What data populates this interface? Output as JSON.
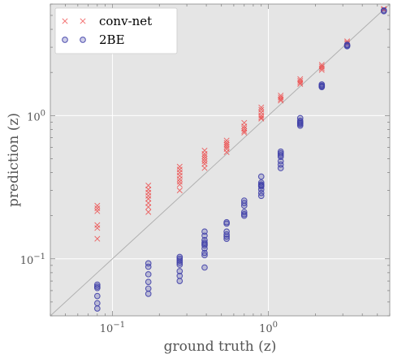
{
  "chart_data": {
    "type": "scatter",
    "title": "",
    "xlabel": "ground truth (z)",
    "ylabel": "prediction (z)",
    "xscale": "log",
    "yscale": "log",
    "xlim": [
      0.04,
      6.0
    ],
    "ylim": [
      0.04,
      6.0
    ],
    "grid": true,
    "legend_position": "top-left",
    "reference_line": "y = x",
    "x_tick_labels": [
      {
        "base": "10",
        "exp": "−1",
        "value": 0.1
      },
      {
        "base": "10",
        "exp": "0",
        "value": 1
      }
    ],
    "y_tick_labels": [
      {
        "base": "10",
        "exp": "−1",
        "value": 0.1
      },
      {
        "base": "10",
        "exp": "0",
        "value": 1
      }
    ],
    "colors": {
      "plot_background": "#e5e5e5",
      "grid": "#ffffff",
      "reference_line": "#b0b0b0",
      "conv_net": "#ee3333",
      "two_be": "#4040a8"
    },
    "series": [
      {
        "name": "conv-net",
        "marker": "x",
        "color": "#ee3333",
        "points": [
          [
            0.08,
            0.235
          ],
          [
            0.08,
            0.225
          ],
          [
            0.08,
            0.215
          ],
          [
            0.08,
            0.172
          ],
          [
            0.08,
            0.164
          ],
          [
            0.08,
            0.138
          ],
          [
            0.17,
            0.325
          ],
          [
            0.17,
            0.305
          ],
          [
            0.17,
            0.29
          ],
          [
            0.17,
            0.275
          ],
          [
            0.17,
            0.262
          ],
          [
            0.17,
            0.245
          ],
          [
            0.17,
            0.23
          ],
          [
            0.17,
            0.212
          ],
          [
            0.27,
            0.44
          ],
          [
            0.27,
            0.42
          ],
          [
            0.27,
            0.4
          ],
          [
            0.27,
            0.38
          ],
          [
            0.27,
            0.36
          ],
          [
            0.27,
            0.345
          ],
          [
            0.27,
            0.33
          ],
          [
            0.27,
            0.3
          ],
          [
            0.39,
            0.57
          ],
          [
            0.39,
            0.54
          ],
          [
            0.39,
            0.52
          ],
          [
            0.39,
            0.5
          ],
          [
            0.39,
            0.48
          ],
          [
            0.39,
            0.46
          ],
          [
            0.39,
            0.43
          ],
          [
            0.54,
            0.67
          ],
          [
            0.54,
            0.645
          ],
          [
            0.54,
            0.625
          ],
          [
            0.54,
            0.605
          ],
          [
            0.54,
            0.585
          ],
          [
            0.54,
            0.555
          ],
          [
            0.7,
            0.89
          ],
          [
            0.7,
            0.84
          ],
          [
            0.7,
            0.81
          ],
          [
            0.7,
            0.78
          ],
          [
            0.7,
            0.76
          ],
          [
            0.9,
            1.14
          ],
          [
            0.9,
            1.1
          ],
          [
            0.9,
            1.05
          ],
          [
            0.9,
            1.0
          ],
          [
            0.9,
            0.97
          ],
          [
            0.9,
            0.95
          ],
          [
            1.2,
            1.38
          ],
          [
            1.2,
            1.34
          ],
          [
            1.2,
            1.3
          ],
          [
            1.2,
            1.27
          ],
          [
            1.6,
            1.8
          ],
          [
            1.6,
            1.75
          ],
          [
            1.6,
            1.7
          ],
          [
            1.6,
            1.66
          ],
          [
            2.2,
            2.26
          ],
          [
            2.2,
            2.2
          ],
          [
            2.2,
            2.14
          ],
          [
            2.2,
            2.08
          ],
          [
            3.2,
            3.3
          ],
          [
            3.2,
            3.22
          ],
          [
            3.2,
            3.15
          ],
          [
            5.5,
            5.55
          ],
          [
            5.5,
            5.48
          ]
        ]
      },
      {
        "name": "2BE",
        "marker": "o",
        "color": "#4040a8",
        "points": [
          [
            0.08,
            0.066
          ],
          [
            0.08,
            0.064
          ],
          [
            0.08,
            0.0625
          ],
          [
            0.08,
            0.055
          ],
          [
            0.08,
            0.049
          ],
          [
            0.08,
            0.045
          ],
          [
            0.17,
            0.093
          ],
          [
            0.17,
            0.088
          ],
          [
            0.17,
            0.078
          ],
          [
            0.17,
            0.069
          ],
          [
            0.17,
            0.062
          ],
          [
            0.17,
            0.057
          ],
          [
            0.27,
            0.103
          ],
          [
            0.27,
            0.1
          ],
          [
            0.27,
            0.097
          ],
          [
            0.27,
            0.094
          ],
          [
            0.27,
            0.091
          ],
          [
            0.27,
            0.082
          ],
          [
            0.27,
            0.076
          ],
          [
            0.27,
            0.07
          ],
          [
            0.39,
            0.155
          ],
          [
            0.39,
            0.145
          ],
          [
            0.39,
            0.135
          ],
          [
            0.39,
            0.13
          ],
          [
            0.39,
            0.127
          ],
          [
            0.39,
            0.124
          ],
          [
            0.39,
            0.118
          ],
          [
            0.39,
            0.11
          ],
          [
            0.39,
            0.106
          ],
          [
            0.39,
            0.087
          ],
          [
            0.54,
            0.18
          ],
          [
            0.54,
            0.176
          ],
          [
            0.54,
            0.155
          ],
          [
            0.54,
            0.148
          ],
          [
            0.54,
            0.143
          ],
          [
            0.54,
            0.138
          ],
          [
            0.7,
            0.255
          ],
          [
            0.7,
            0.245
          ],
          [
            0.7,
            0.235
          ],
          [
            0.7,
            0.212
          ],
          [
            0.7,
            0.205
          ],
          [
            0.7,
            0.2
          ],
          [
            0.9,
            0.375
          ],
          [
            0.9,
            0.34
          ],
          [
            0.9,
            0.33
          ],
          [
            0.9,
            0.325
          ],
          [
            0.9,
            0.32
          ],
          [
            0.9,
            0.305
          ],
          [
            0.9,
            0.288
          ],
          [
            0.9,
            0.275
          ],
          [
            1.2,
            0.56
          ],
          [
            1.2,
            0.545
          ],
          [
            1.2,
            0.53
          ],
          [
            1.2,
            0.515
          ],
          [
            1.2,
            0.48
          ],
          [
            1.2,
            0.455
          ],
          [
            1.2,
            0.43
          ],
          [
            1.6,
            0.96
          ],
          [
            1.6,
            0.92
          ],
          [
            1.6,
            0.9
          ],
          [
            1.6,
            0.885
          ],
          [
            1.6,
            0.87
          ],
          [
            1.6,
            0.85
          ],
          [
            2.2,
            1.65
          ],
          [
            2.2,
            1.62
          ],
          [
            2.2,
            1.6
          ],
          [
            2.2,
            1.58
          ],
          [
            3.2,
            3.12
          ],
          [
            3.2,
            3.08
          ],
          [
            3.2,
            3.05
          ],
          [
            5.5,
            5.42
          ],
          [
            5.5,
            5.35
          ]
        ]
      }
    ]
  }
}
